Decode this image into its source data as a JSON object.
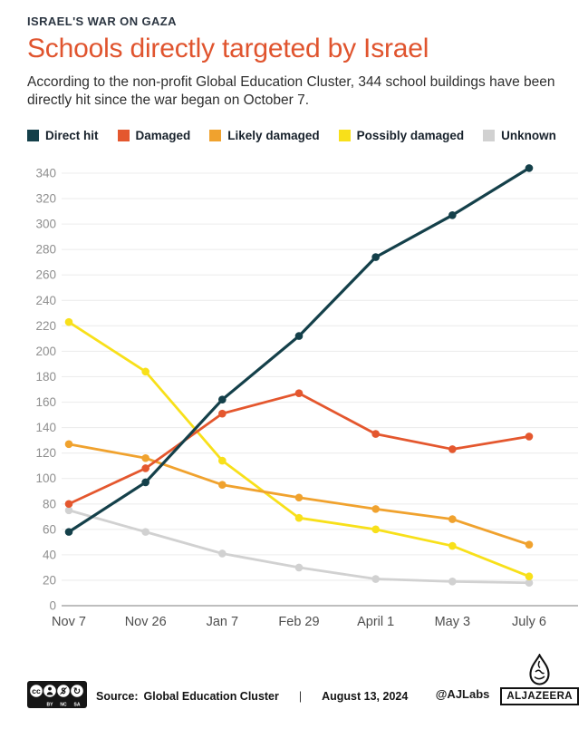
{
  "header": {
    "eyebrow": "ISRAEL'S WAR ON GAZA",
    "title": "Schools directly targeted by Israel",
    "subtitle": "According to the non-profit Global Education Cluster, 344 school buildings have been directly hit since the war began on October 7."
  },
  "chart_data": {
    "type": "line",
    "title": "Schools directly targeted by Israel",
    "x": [
      "Nov 7",
      "Nov 26",
      "Jan 7",
      "Feb 29",
      "April 1",
      "May 3",
      "July 6"
    ],
    "series": [
      {
        "name": "Direct hit",
        "color": "#14404a",
        "values": [
          58,
          97,
          162,
          212,
          274,
          307,
          344
        ]
      },
      {
        "name": "Damaged",
        "color": "#e4572e",
        "values": [
          80,
          108,
          151,
          167,
          135,
          123,
          133
        ]
      },
      {
        "name": "Likely damaged",
        "color": "#f0a22e",
        "values": [
          127,
          116,
          95,
          85,
          76,
          68,
          48
        ]
      },
      {
        "name": "Possibly damaged",
        "color": "#f8e01a",
        "values": [
          223,
          184,
          114,
          69,
          60,
          47,
          23
        ]
      },
      {
        "name": "Unknown",
        "color": "#d1d1d1",
        "values": [
          75,
          58,
          41,
          30,
          21,
          19,
          18
        ]
      }
    ],
    "ylim": [
      0,
      340
    ],
    "ytick_step": 20,
    "grid": true,
    "legend_position": "top",
    "colors": {
      "grid": "#ededed",
      "axis": "#a9a9a9",
      "y_labels": "#8f8f8f",
      "x_labels": "#4e4e4e"
    }
  },
  "footer": {
    "license": "CC BY-NC-SA",
    "source_label": "Source:",
    "source_value": "Global Education Cluster",
    "separator": "|",
    "date": "August 13, 2024",
    "credit": "@AJLabs",
    "brand": "ALJAZEERA"
  }
}
